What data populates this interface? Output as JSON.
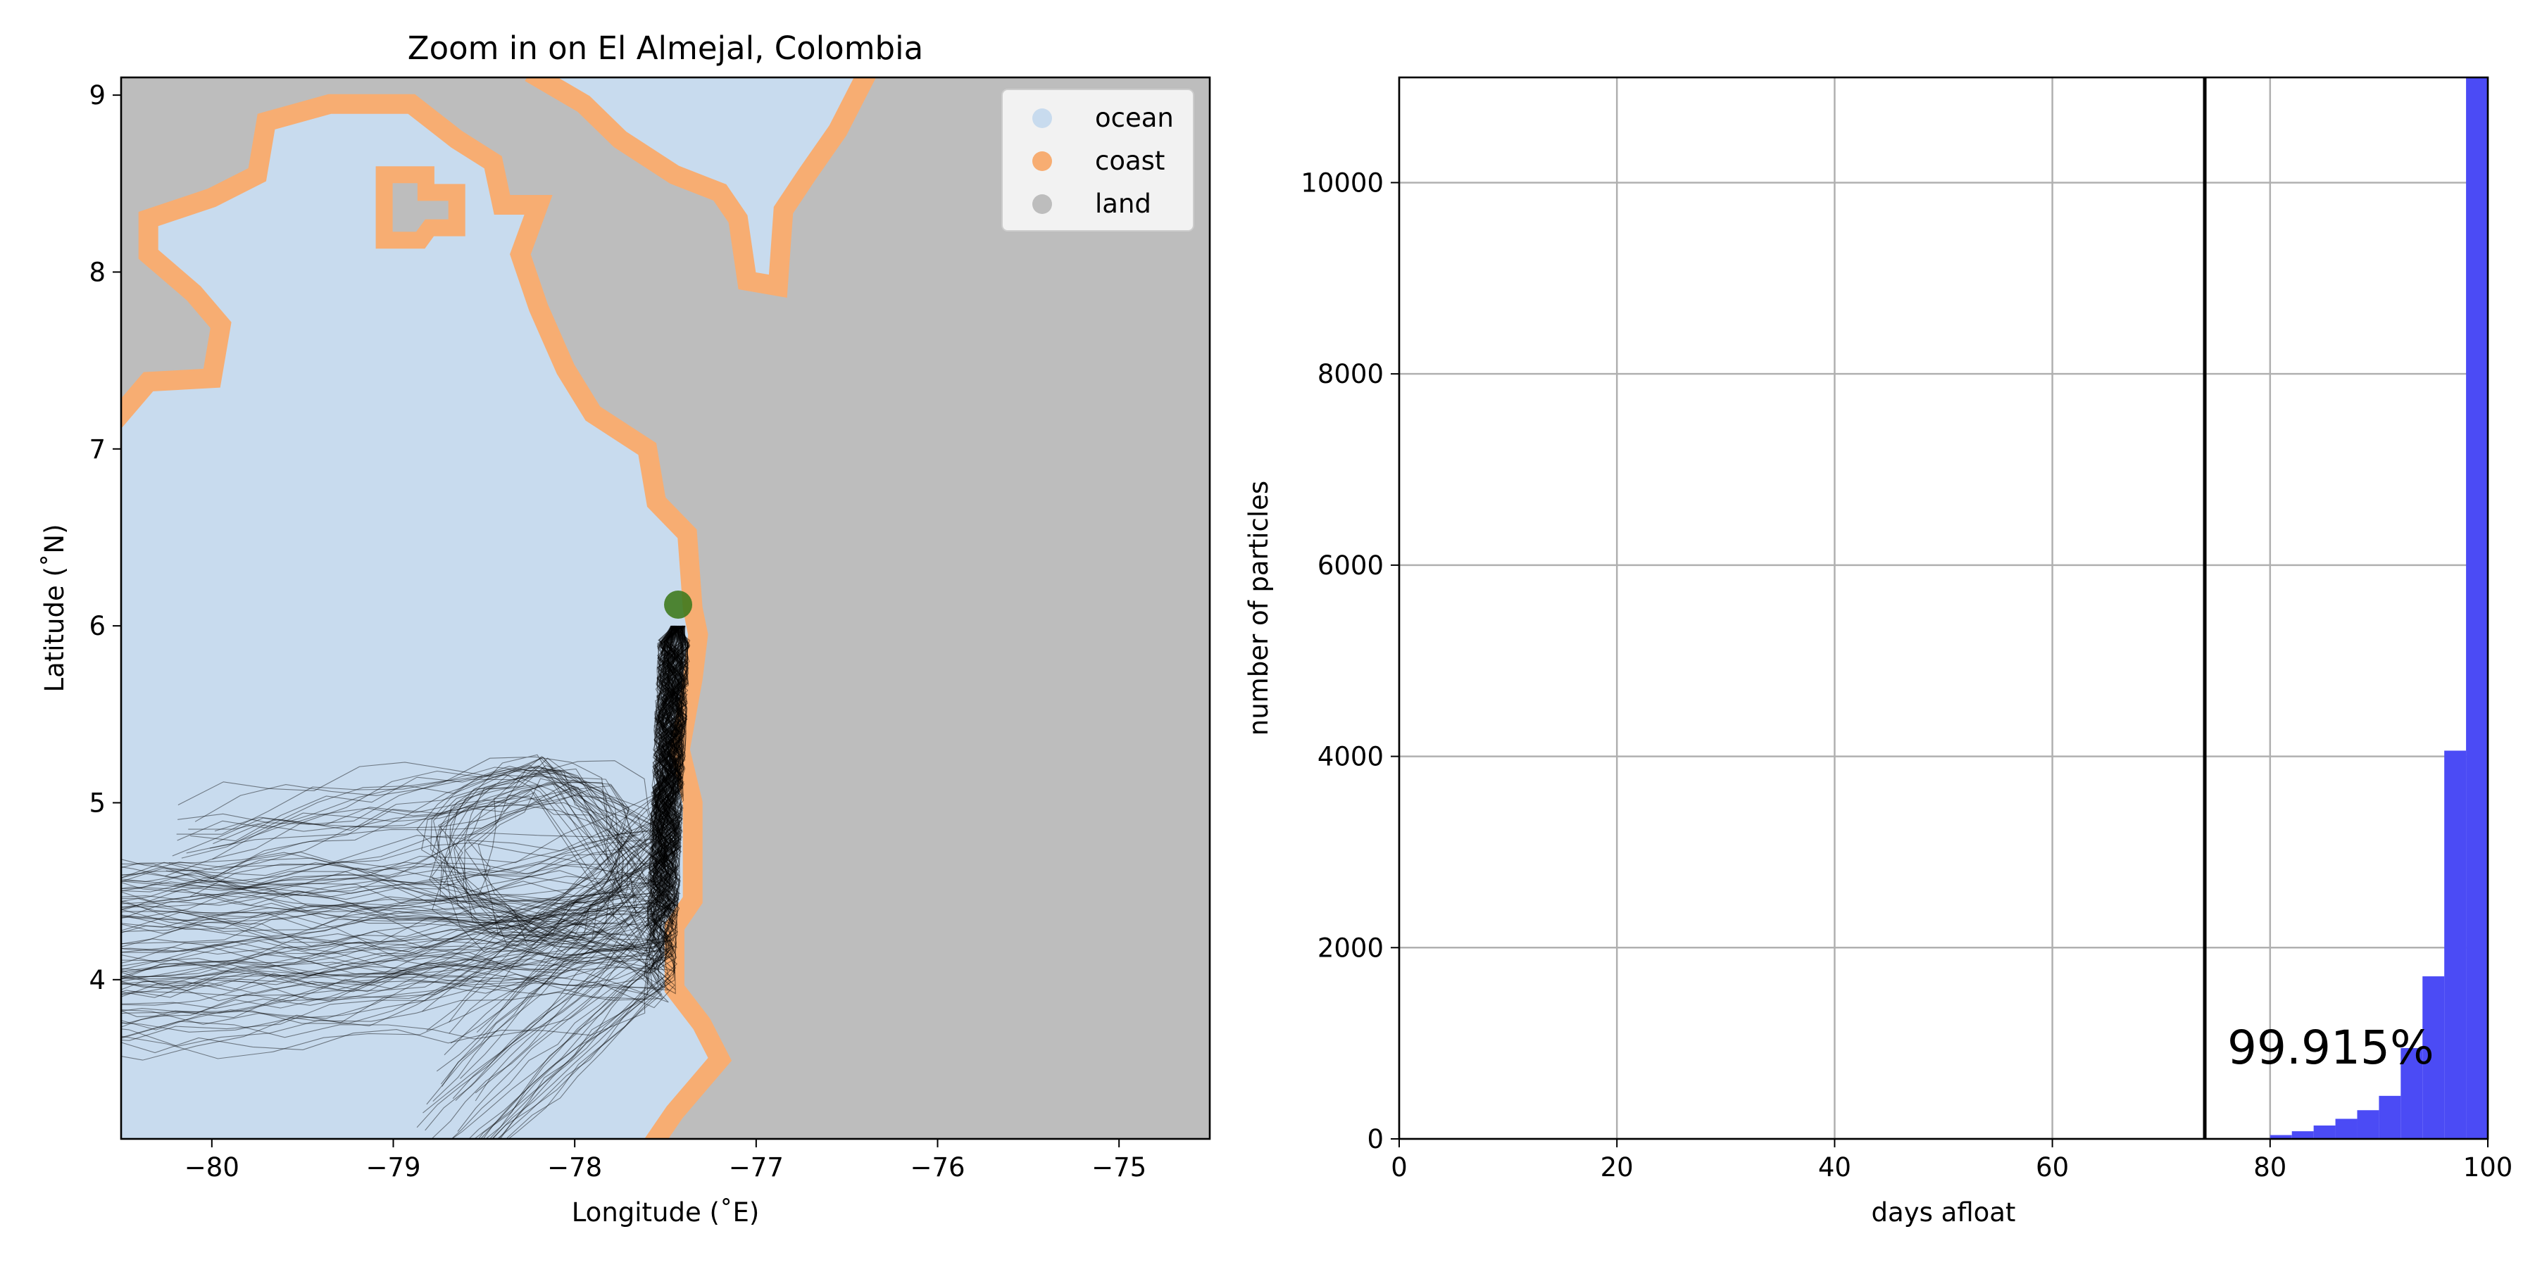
{
  "colors": {
    "ocean": "#c8dbee",
    "coast": "#f7ad72",
    "land": "#bdbdbd",
    "trajectory": "#000000",
    "release_point": "#3f7a1e",
    "hist_bar": "#4b4bf5",
    "threshold_line": "#000000",
    "grid": "#b0b0b0"
  },
  "chart_data": [
    {
      "type": "map",
      "title": "Zoom in on El Almejal, Colombia",
      "xlabel": "Longitude (˚E)",
      "ylabel": "Latitude (˚N)",
      "xlim": [
        -80.5,
        -74.5
      ],
      "ylim": [
        3.1,
        9.1
      ],
      "xticks": [
        -80,
        -79,
        -78,
        -77,
        -76,
        -75
      ],
      "xtick_labels": [
        "−80",
        "−79",
        "−78",
        "−77",
        "−76",
        "−75"
      ],
      "yticks": [
        4,
        5,
        6,
        7,
        8,
        9
      ],
      "ytick_labels": [
        "4",
        "5",
        "6",
        "7",
        "8",
        "9"
      ],
      "legend": {
        "position": "top-right",
        "entries": [
          {
            "label": "ocean",
            "color": "#c8dbee"
          },
          {
            "label": "coast",
            "color": "#f7ad72"
          },
          {
            "label": "land",
            "color": "#bdbdbd"
          }
        ]
      },
      "release_point": {
        "lon": -77.43,
        "lat": 6.12
      },
      "coastline_path": [
        [
          -80.5,
          7.2
        ],
        [
          -80.35,
          7.38
        ],
        [
          -80.0,
          7.4
        ],
        [
          -79.95,
          7.7
        ],
        [
          -80.1,
          7.88
        ],
        [
          -80.35,
          8.1
        ],
        [
          -80.35,
          8.3
        ],
        [
          -80.0,
          8.42
        ],
        [
          -79.75,
          8.55
        ],
        [
          -79.7,
          8.85
        ],
        [
          -79.35,
          8.95
        ],
        [
          -78.9,
          8.95
        ],
        [
          -78.65,
          8.75
        ],
        [
          -78.45,
          8.62
        ],
        [
          -78.4,
          8.38
        ],
        [
          -78.2,
          8.38
        ],
        [
          -78.3,
          8.1
        ],
        [
          -78.2,
          7.8
        ],
        [
          -78.05,
          7.45
        ],
        [
          -77.9,
          7.2
        ],
        [
          -77.6,
          7.0
        ],
        [
          -77.55,
          6.7
        ],
        [
          -77.38,
          6.52
        ],
        [
          -77.35,
          6.1
        ],
        [
          -77.32,
          5.95
        ],
        [
          -77.35,
          5.7
        ],
        [
          -77.42,
          5.3
        ],
        [
          -77.35,
          5.0
        ],
        [
          -77.35,
          4.45
        ],
        [
          -77.45,
          4.3
        ],
        [
          -77.45,
          3.95
        ],
        [
          -77.3,
          3.75
        ],
        [
          -77.2,
          3.55
        ],
        [
          -77.45,
          3.25
        ],
        [
          -77.55,
          3.1
        ]
      ],
      "north_coast_path": [
        [
          -78.2,
          9.1
        ],
        [
          -77.95,
          8.95
        ],
        [
          -77.75,
          8.75
        ],
        [
          -77.45,
          8.55
        ],
        [
          -77.2,
          8.45
        ],
        [
          -77.1,
          8.3
        ],
        [
          -77.05,
          7.95
        ],
        [
          -76.88,
          7.92
        ],
        [
          -76.85,
          8.35
        ],
        [
          -76.72,
          8.55
        ],
        [
          -76.55,
          8.8
        ],
        [
          -76.4,
          9.1
        ]
      ],
      "island_path": [
        [
          -79.05,
          8.55
        ],
        [
          -78.82,
          8.55
        ],
        [
          -78.82,
          8.45
        ],
        [
          -78.65,
          8.45
        ],
        [
          -78.65,
          8.25
        ],
        [
          -78.8,
          8.25
        ],
        [
          -78.85,
          8.18
        ],
        [
          -79.05,
          8.18
        ],
        [
          -79.05,
          8.55
        ]
      ],
      "trajectory_envelope": {
        "seed_lon": -77.43,
        "seed_lat": 6.0,
        "westward_exit_lat_range": [
          3.6,
          4.65
        ],
        "southern_extent_lat": 3.1,
        "loop_center": [
          -78.15,
          4.7
        ]
      }
    },
    {
      "type": "bar",
      "xlabel": "days afloat",
      "ylabel": "number of particles",
      "xlim": [
        0,
        100
      ],
      "ylim": [
        0,
        11100
      ],
      "xticks": [
        0,
        20,
        40,
        60,
        80,
        100
      ],
      "xtick_labels": [
        "0",
        "20",
        "40",
        "60",
        "80",
        "100"
      ],
      "yticks": [
        0,
        2000,
        4000,
        6000,
        8000,
        10000
      ],
      "ytick_labels": [
        "0",
        "2000",
        "4000",
        "6000",
        "8000",
        "10000"
      ],
      "grid": true,
      "threshold_x": 74,
      "annotation": "99.915%",
      "bins": [
        {
          "x0": 78,
          "x1": 80,
          "value": 5
        },
        {
          "x0": 80,
          "x1": 82,
          "value": 40
        },
        {
          "x0": 82,
          "x1": 84,
          "value": 80
        },
        {
          "x0": 84,
          "x1": 86,
          "value": 140
        },
        {
          "x0": 86,
          "x1": 88,
          "value": 210
        },
        {
          "x0": 88,
          "x1": 90,
          "value": 300
        },
        {
          "x0": 90,
          "x1": 92,
          "value": 450
        },
        {
          "x0": 92,
          "x1": 94,
          "value": 950
        },
        {
          "x0": 94,
          "x1": 96,
          "value": 1700
        },
        {
          "x0": 96,
          "x1": 98,
          "value": 4060
        },
        {
          "x0": 98,
          "x1": 100,
          "value": 11100
        }
      ]
    }
  ]
}
